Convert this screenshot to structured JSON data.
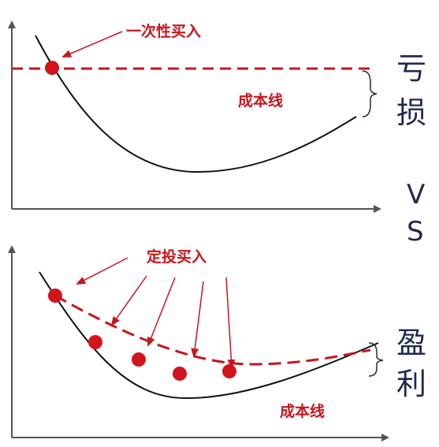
{
  "top_panel": {
    "annotation": "一次性买入",
    "cost_line_label": "成本线",
    "outcome": [
      "亏",
      "损"
    ]
  },
  "versus": [
    "V",
    "S"
  ],
  "bottom_panel": {
    "annotation": "定投买入",
    "cost_line_label": "成本线",
    "outcome": [
      "盈",
      "利"
    ]
  }
}
